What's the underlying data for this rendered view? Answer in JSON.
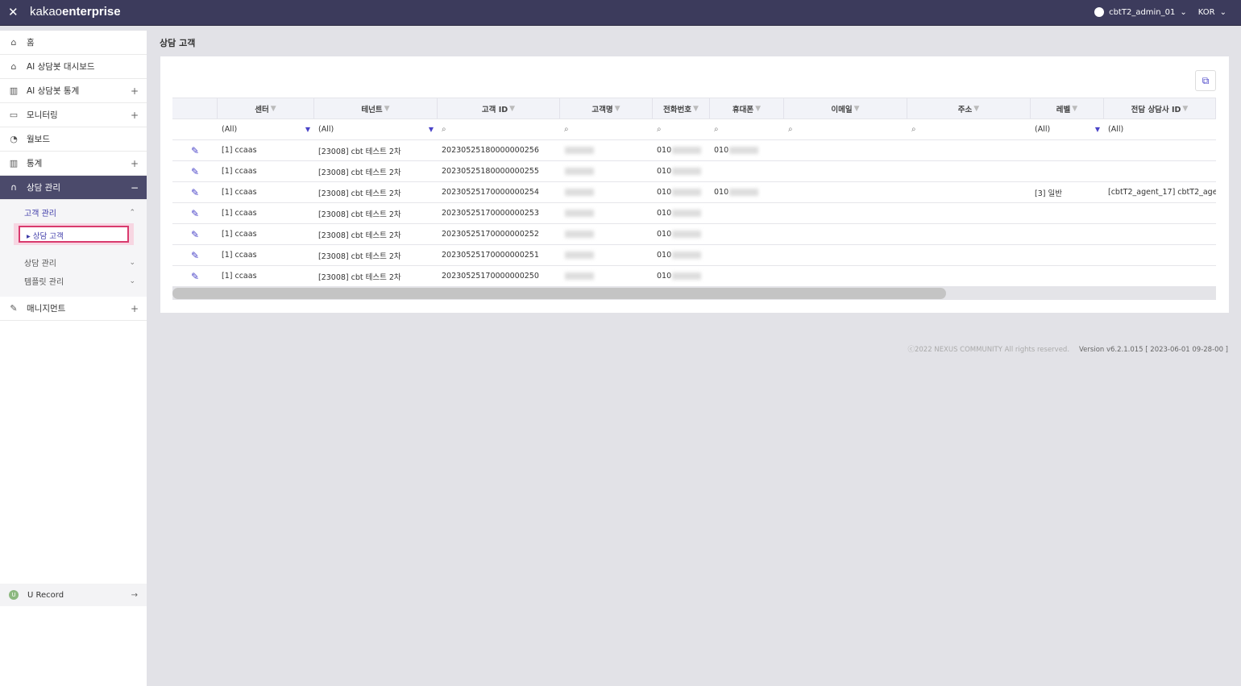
{
  "topbar": {
    "logo_light": "kakao",
    "logo_bold": "enterprise",
    "user": "cbtT2_admin_01",
    "lang": "KOR"
  },
  "sidebar": {
    "items": [
      {
        "label": "홈",
        "icon": "home-icon",
        "expand": ""
      },
      {
        "label": "AI 상담봇 대시보드",
        "icon": "home-icon",
        "expand": ""
      },
      {
        "label": "AI 상담봇 통계",
        "icon": "bar-chart-icon",
        "expand": "+"
      },
      {
        "label": "모니터링",
        "icon": "monitor-icon",
        "expand": "+"
      },
      {
        "label": "월보드",
        "icon": "pie-chart-icon",
        "expand": ""
      },
      {
        "label": "통계",
        "icon": "bar-chart-icon",
        "expand": "+"
      },
      {
        "label": "상담 관리",
        "icon": "headset-icon",
        "expand": "−"
      }
    ],
    "sub": {
      "group1": "고객 관리",
      "selected": "▸ 상담 고객",
      "group2": "상담 관리",
      "group3": "템플릿 관리"
    },
    "management": {
      "label": "매니지먼트",
      "expand": "+"
    },
    "urecord": "U Record"
  },
  "page": {
    "title": "상담 고객"
  },
  "table": {
    "columns": [
      "센터",
      "테넌트",
      "고객 ID",
      "고객명",
      "전화번호",
      "휴대폰",
      "이메일",
      "주소",
      "레벨",
      "전담 상담사 ID"
    ],
    "filters": [
      "(All)",
      "(All)",
      "",
      "",
      "",
      "",
      "",
      "",
      "(All)",
      "(All)"
    ],
    "rows": [
      {
        "center": "[1] ccaas",
        "tenant": "[23008] cbt 테스트 2차",
        "id": "20230525180000000256",
        "phone": "010",
        "mobile": "010",
        "level": "",
        "agent": ""
      },
      {
        "center": "[1] ccaas",
        "tenant": "[23008] cbt 테스트 2차",
        "id": "20230525180000000255",
        "phone": "010",
        "mobile": "",
        "level": "",
        "agent": ""
      },
      {
        "center": "[1] ccaas",
        "tenant": "[23008] cbt 테스트 2차",
        "id": "20230525170000000254",
        "phone": "010",
        "mobile": "010",
        "level": "[3] 일반",
        "agent": "[cbtT2_agent_17] cbtT2_age"
      },
      {
        "center": "[1] ccaas",
        "tenant": "[23008] cbt 테스트 2차",
        "id": "20230525170000000253",
        "phone": "010",
        "mobile": "",
        "level": "",
        "agent": ""
      },
      {
        "center": "[1] ccaas",
        "tenant": "[23008] cbt 테스트 2차",
        "id": "20230525170000000252",
        "phone": "010",
        "mobile": "",
        "level": "",
        "agent": ""
      },
      {
        "center": "[1] ccaas",
        "tenant": "[23008] cbt 테스트 2차",
        "id": "20230525170000000251",
        "phone": "010",
        "mobile": "",
        "level": "",
        "agent": ""
      },
      {
        "center": "[1] ccaas",
        "tenant": "[23008] cbt 테스트 2차",
        "id": "20230525170000000250",
        "phone": "010",
        "mobile": "",
        "level": "",
        "agent": ""
      }
    ]
  },
  "footer": {
    "copyright": "ⓒ2022 NEXUS COMMUNITY All rights reserved.",
    "version": "Version v6.2.1.015 [ 2023-06-01 09-28-00 ]"
  },
  "colors": {
    "topbar": "#3c3b5c",
    "accent": "#4a44c8",
    "highlight": "#d93a6e"
  }
}
